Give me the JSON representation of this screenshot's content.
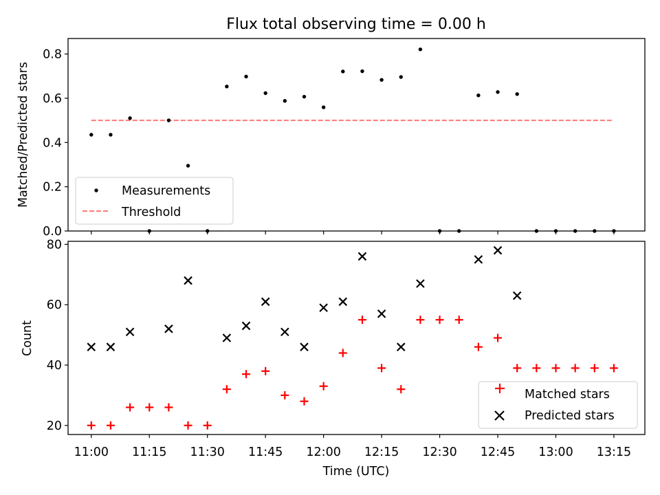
{
  "chart_data": [
    {
      "type": "scatter",
      "title": "Flux total observing time = 0.00 h",
      "xlabel": "",
      "ylabel": "Matched/Predicted stars",
      "xlim": [
        "10:54",
        "13:23"
      ],
      "ylim": [
        0,
        0.87
      ],
      "yticks": [
        0.0,
        0.2,
        0.4,
        0.6,
        0.8
      ],
      "ytick_labels": [
        "0.0",
        "0.2",
        "0.4",
        "0.6",
        "0.8"
      ],
      "grid": false,
      "legend_position": "lower-left",
      "series": [
        {
          "name": "Measurements",
          "kind": "scatter",
          "marker": "dot",
          "color": "#000000",
          "x": [
            "11:00",
            "11:05",
            "11:10",
            "11:15",
            "11:20",
            "11:25",
            "11:30",
            "11:35",
            "11:40",
            "11:45",
            "11:50",
            "11:55",
            "12:00",
            "12:05",
            "12:10",
            "12:15",
            "12:20",
            "12:25",
            "12:30",
            "12:35",
            "12:40",
            "12:45",
            "12:50",
            "12:55",
            "13:00",
            "13:05",
            "13:10",
            "13:15"
          ],
          "y": [
            0.435,
            0.435,
            0.51,
            0.0,
            0.5,
            0.295,
            0.0,
            0.653,
            0.698,
            0.623,
            0.588,
            0.607,
            0.559,
            0.721,
            0.722,
            0.683,
            0.696,
            0.821,
            0.0,
            0.0,
            0.613,
            0.628,
            0.619,
            0.0,
            0.0,
            0.0,
            0.0,
            0.0
          ]
        },
        {
          "name": "Threshold",
          "kind": "line",
          "linestyle": "dashed",
          "color": "#ff7f7f",
          "x": [
            "11:00",
            "13:15"
          ],
          "y": [
            0.5,
            0.5
          ]
        }
      ]
    },
    {
      "type": "scatter",
      "title": "",
      "xlabel": "Time (UTC)",
      "ylabel": "Count",
      "xlim": [
        "10:54",
        "13:23"
      ],
      "ylim": [
        17,
        81
      ],
      "yticks": [
        20,
        40,
        60,
        80
      ],
      "ytick_labels": [
        "20",
        "40",
        "60",
        "80"
      ],
      "xticks": [
        "11:00",
        "11:15",
        "11:30",
        "11:45",
        "12:00",
        "12:15",
        "12:30",
        "12:45",
        "13:00",
        "13:15"
      ],
      "grid": false,
      "legend_position": "lower-right",
      "series": [
        {
          "name": "Matched stars",
          "kind": "scatter",
          "marker": "plus",
          "color": "#ff0000",
          "x": [
            "11:00",
            "11:05",
            "11:10",
            "11:15",
            "11:20",
            "11:25",
            "11:30",
            "11:35",
            "11:40",
            "11:45",
            "11:50",
            "11:55",
            "12:00",
            "12:05",
            "12:10",
            "12:15",
            "12:20",
            "12:25",
            "12:30",
            "12:35",
            "12:40",
            "12:45",
            "12:50",
            "12:55",
            "13:00",
            "13:05",
            "13:10",
            "13:15"
          ],
          "y": [
            20,
            20,
            26,
            26,
            26,
            20,
            20,
            32,
            37,
            38,
            30,
            28,
            33,
            44,
            55,
            39,
            32,
            55,
            55,
            55,
            46,
            49,
            39,
            39,
            39,
            39,
            39,
            39
          ]
        },
        {
          "name": "Predicted stars",
          "kind": "scatter",
          "marker": "x",
          "color": "#000000",
          "x": [
            "11:00",
            "11:05",
            "11:10",
            "11:20",
            "11:25",
            "11:35",
            "11:40",
            "11:45",
            "11:50",
            "11:55",
            "12:00",
            "12:05",
            "12:10",
            "12:15",
            "12:20",
            "12:25",
            "12:40",
            "12:45",
            "12:50"
          ],
          "y": [
            46,
            46,
            51,
            52,
            68,
            49,
            53,
            61,
            51,
            46,
            59,
            61,
            76,
            57,
            46,
            67,
            75,
            78,
            63
          ]
        }
      ]
    }
  ]
}
